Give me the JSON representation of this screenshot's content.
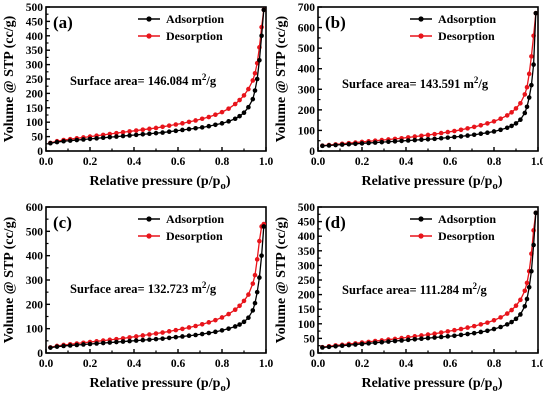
{
  "figure": {
    "colors": {
      "adsorption": "#000000",
      "desorption": "#e8141b"
    }
  },
  "chart_data": [
    {
      "type": "line",
      "panel_label": "(a)",
      "xlabel": "Relative pressure (p/p",
      "xlabel_sub": "o",
      "xlabel_close": ")",
      "ylabel": "Volume @ STP (cc/g)",
      "xlim": [
        0,
        1.0
      ],
      "ylim": [
        0,
        500
      ],
      "xticks": [
        0.0,
        0.2,
        0.4,
        0.6,
        0.8,
        1.0
      ],
      "xtick_labels": [
        "0.0",
        "0.2",
        "0.4",
        "0.6",
        "0.8",
        "1.0"
      ],
      "yticks": [
        0,
        50,
        100,
        150,
        200,
        250,
        300,
        350,
        400,
        450,
        500
      ],
      "ytick_labels": [
        "0",
        "50",
        "100",
        "150",
        "200",
        "250",
        "300",
        "350",
        "400",
        "450",
        "500"
      ],
      "annotation": {
        "text": "Surface area= 146.084 m",
        "sup": "2",
        "suffix": "/g"
      },
      "legend": {
        "position": "top-right"
      },
      "series": [
        {
          "name": "Adsorption",
          "x": [
            0.02,
            0.05,
            0.08,
            0.11,
            0.14,
            0.17,
            0.2,
            0.23,
            0.26,
            0.29,
            0.32,
            0.35,
            0.38,
            0.41,
            0.44,
            0.47,
            0.5,
            0.53,
            0.56,
            0.59,
            0.62,
            0.65,
            0.68,
            0.71,
            0.74,
            0.77,
            0.8,
            0.83,
            0.86,
            0.88,
            0.9,
            0.92,
            0.94,
            0.95,
            0.96,
            0.97,
            0.98,
            0.99
          ],
          "y": [
            27,
            31,
            34,
            36,
            38,
            40,
            42,
            44,
            46,
            48,
            50,
            52,
            54,
            56,
            58,
            60,
            62,
            64,
            67,
            70,
            73,
            76,
            79,
            82,
            86,
            91,
            96,
            103,
            112,
            121,
            133,
            152,
            180,
            210,
            250,
            315,
            400,
            490
          ]
        },
        {
          "name": "Desorption",
          "x": [
            0.02,
            0.05,
            0.08,
            0.11,
            0.14,
            0.17,
            0.2,
            0.23,
            0.26,
            0.29,
            0.32,
            0.35,
            0.38,
            0.41,
            0.44,
            0.47,
            0.5,
            0.53,
            0.56,
            0.59,
            0.62,
            0.65,
            0.68,
            0.71,
            0.74,
            0.77,
            0.8,
            0.83,
            0.86,
            0.88,
            0.9,
            0.92,
            0.94,
            0.95,
            0.96,
            0.97,
            0.98,
            0.99
          ],
          "y": [
            28,
            34,
            38,
            41,
            44,
            47,
            50,
            53,
            56,
            59,
            62,
            65,
            68,
            71,
            74,
            77,
            80,
            84,
            88,
            92,
            96,
            101,
            106,
            112,
            118,
            126,
            135,
            147,
            163,
            177,
            193,
            215,
            245,
            270,
            305,
            360,
            430,
            490
          ]
        }
      ]
    },
    {
      "type": "line",
      "panel_label": "(b)",
      "xlabel": "Relative pressure (p/p",
      "xlabel_sub": "o",
      "xlabel_close": ")",
      "ylabel": "Volume @ STP (cc/g)",
      "xlim": [
        0,
        1.0
      ],
      "ylim": [
        0,
        700
      ],
      "xticks": [
        0.0,
        0.2,
        0.4,
        0.6,
        0.8,
        1.0
      ],
      "xtick_labels": [
        "0.0",
        "0.2",
        "0.4",
        "0.6",
        "0.8",
        "1.0"
      ],
      "yticks": [
        0,
        100,
        200,
        300,
        400,
        500,
        600,
        700
      ],
      "ytick_labels": [
        "0",
        "100",
        "200",
        "300",
        "400",
        "500",
        "600",
        "700"
      ],
      "annotation": {
        "text": "Surface area= 143.591 m",
        "sup": "2",
        "suffix": "/g"
      },
      "legend": {
        "position": "top-right"
      },
      "series": [
        {
          "name": "Adsorption",
          "x": [
            0.02,
            0.05,
            0.08,
            0.11,
            0.14,
            0.17,
            0.2,
            0.23,
            0.26,
            0.29,
            0.32,
            0.35,
            0.38,
            0.41,
            0.44,
            0.47,
            0.5,
            0.53,
            0.56,
            0.59,
            0.62,
            0.65,
            0.68,
            0.71,
            0.74,
            0.77,
            0.8,
            0.83,
            0.86,
            0.88,
            0.9,
            0.92,
            0.94,
            0.95,
            0.96,
            0.97,
            0.98,
            0.99
          ],
          "y": [
            25,
            27,
            29,
            31,
            33,
            35,
            37,
            39,
            41,
            43,
            45,
            47,
            49,
            51,
            53,
            55,
            57,
            59,
            62,
            65,
            68,
            71,
            75,
            79,
            84,
            89,
            95,
            103,
            113,
            122,
            134,
            152,
            185,
            215,
            260,
            320,
            420,
            670
          ]
        },
        {
          "name": "Desorption",
          "x": [
            0.02,
            0.05,
            0.08,
            0.11,
            0.14,
            0.17,
            0.2,
            0.23,
            0.26,
            0.29,
            0.32,
            0.35,
            0.38,
            0.41,
            0.44,
            0.47,
            0.5,
            0.53,
            0.56,
            0.59,
            0.62,
            0.65,
            0.68,
            0.71,
            0.74,
            0.77,
            0.8,
            0.83,
            0.86,
            0.88,
            0.9,
            0.92,
            0.94,
            0.95,
            0.96,
            0.97,
            0.98,
            0.99
          ],
          "y": [
            26,
            29,
            32,
            35,
            38,
            41,
            44,
            47,
            50,
            53,
            56,
            59,
            62,
            66,
            70,
            74,
            78,
            82,
            87,
            92,
            97,
            103,
            110,
            117,
            125,
            134,
            144,
            157,
            173,
            188,
            207,
            232,
            275,
            310,
            375,
            460,
            560,
            670
          ]
        }
      ]
    },
    {
      "type": "line",
      "panel_label": "(c)",
      "xlabel": "Relative pressure (p/p",
      "xlabel_sub": "o",
      "xlabel_close": ")",
      "ylabel": "Volume @ STP (cc/g)",
      "xlim": [
        0,
        1.0
      ],
      "ylim": [
        0,
        600
      ],
      "xticks": [
        0.0,
        0.2,
        0.4,
        0.6,
        0.8,
        1.0
      ],
      "xtick_labels": [
        "0.0",
        "0.2",
        "0.4",
        "0.6",
        "0.8",
        "1.0"
      ],
      "yticks": [
        0,
        100,
        200,
        300,
        400,
        500,
        600
      ],
      "ytick_labels": [
        "0",
        "100",
        "200",
        "300",
        "400",
        "500",
        "600"
      ],
      "annotation": {
        "text": "Surface area= 132.723 m",
        "sup": "2",
        "suffix": "/g"
      },
      "legend": {
        "position": "top-right"
      },
      "series": [
        {
          "name": "Adsorption",
          "x": [
            0.02,
            0.05,
            0.08,
            0.11,
            0.14,
            0.17,
            0.2,
            0.23,
            0.26,
            0.29,
            0.32,
            0.35,
            0.38,
            0.41,
            0.44,
            0.47,
            0.5,
            0.53,
            0.56,
            0.59,
            0.62,
            0.65,
            0.68,
            0.71,
            0.74,
            0.77,
            0.8,
            0.83,
            0.86,
            0.88,
            0.9,
            0.92,
            0.94,
            0.95,
            0.96,
            0.97,
            0.98,
            0.99
          ],
          "y": [
            22,
            26,
            29,
            31,
            33,
            35,
            37,
            39,
            41,
            43,
            45,
            47,
            49,
            51,
            53,
            55,
            57,
            59,
            62,
            65,
            68,
            71,
            74,
            78,
            82,
            87,
            93,
            100,
            109,
            117,
            128,
            145,
            175,
            205,
            250,
            310,
            400,
            520
          ]
        },
        {
          "name": "Desorption",
          "x": [
            0.02,
            0.05,
            0.08,
            0.11,
            0.14,
            0.17,
            0.2,
            0.23,
            0.26,
            0.29,
            0.32,
            0.35,
            0.38,
            0.41,
            0.44,
            0.47,
            0.5,
            0.53,
            0.56,
            0.59,
            0.62,
            0.65,
            0.68,
            0.71,
            0.74,
            0.77,
            0.8,
            0.83,
            0.86,
            0.88,
            0.9,
            0.92,
            0.94,
            0.95,
            0.96,
            0.97,
            0.98,
            0.99
          ],
          "y": [
            23,
            29,
            33,
            36,
            39,
            42,
            45,
            48,
            51,
            54,
            57,
            60,
            64,
            68,
            72,
            76,
            80,
            84,
            89,
            94,
            99,
            105,
            111,
            118,
            126,
            135,
            146,
            160,
            178,
            194,
            214,
            240,
            285,
            320,
            385,
            460,
            520,
            530
          ]
        }
      ]
    },
    {
      "type": "line",
      "panel_label": "(d)",
      "xlabel": "Relative pressure (p/p",
      "xlabel_sub": "o",
      "xlabel_close": ")",
      "ylabel": "Volume @ STP (cc/g)",
      "xlim": [
        0,
        1.0
      ],
      "ylim": [
        0,
        500
      ],
      "xticks": [
        0.0,
        0.2,
        0.4,
        0.6,
        0.8,
        1.0
      ],
      "xtick_labels": [
        "0.0",
        "0.2",
        "0.4",
        "0.6",
        "0.8",
        "1.0"
      ],
      "yticks": [
        0,
        50,
        100,
        150,
        200,
        250,
        300,
        350,
        400,
        450,
        500
      ],
      "ytick_labels": [
        "0",
        "50",
        "100",
        "150",
        "200",
        "250",
        "300",
        "350",
        "400",
        "450",
        "500"
      ],
      "annotation": {
        "text": "Surface area= 111.284 m",
        "sup": "2",
        "suffix": "/g"
      },
      "legend": {
        "position": "top-right"
      },
      "series": [
        {
          "name": "Adsorption",
          "x": [
            0.02,
            0.05,
            0.08,
            0.11,
            0.14,
            0.17,
            0.2,
            0.23,
            0.26,
            0.29,
            0.32,
            0.35,
            0.38,
            0.41,
            0.44,
            0.47,
            0.5,
            0.53,
            0.56,
            0.59,
            0.62,
            0.65,
            0.68,
            0.71,
            0.74,
            0.77,
            0.8,
            0.83,
            0.86,
            0.88,
            0.9,
            0.92,
            0.94,
            0.95,
            0.96,
            0.97,
            0.98,
            0.99
          ],
          "y": [
            19,
            21,
            23,
            25,
            27,
            29,
            31,
            33,
            35,
            37,
            39,
            41,
            43,
            45,
            47,
            49,
            51,
            53,
            55,
            57,
            59,
            62,
            65,
            68,
            72,
            76,
            82,
            89,
            98,
            106,
            117,
            132,
            160,
            185,
            225,
            280,
            370,
            480
          ]
        },
        {
          "name": "Desorption",
          "x": [
            0.02,
            0.05,
            0.08,
            0.11,
            0.14,
            0.17,
            0.2,
            0.23,
            0.26,
            0.29,
            0.32,
            0.35,
            0.38,
            0.41,
            0.44,
            0.47,
            0.5,
            0.53,
            0.56,
            0.59,
            0.62,
            0.65,
            0.68,
            0.71,
            0.74,
            0.77,
            0.8,
            0.83,
            0.86,
            0.88,
            0.9,
            0.92,
            0.94,
            0.95,
            0.96,
            0.97,
            0.98,
            0.99
          ],
          "y": [
            20,
            23,
            26,
            28,
            31,
            33,
            36,
            38,
            41,
            43,
            46,
            48,
            51,
            54,
            57,
            60,
            63,
            66,
            70,
            74,
            78,
            82,
            87,
            92,
            98,
            104,
            112,
            122,
            135,
            147,
            162,
            182,
            213,
            240,
            280,
            340,
            420,
            480
          ]
        }
      ]
    }
  ]
}
